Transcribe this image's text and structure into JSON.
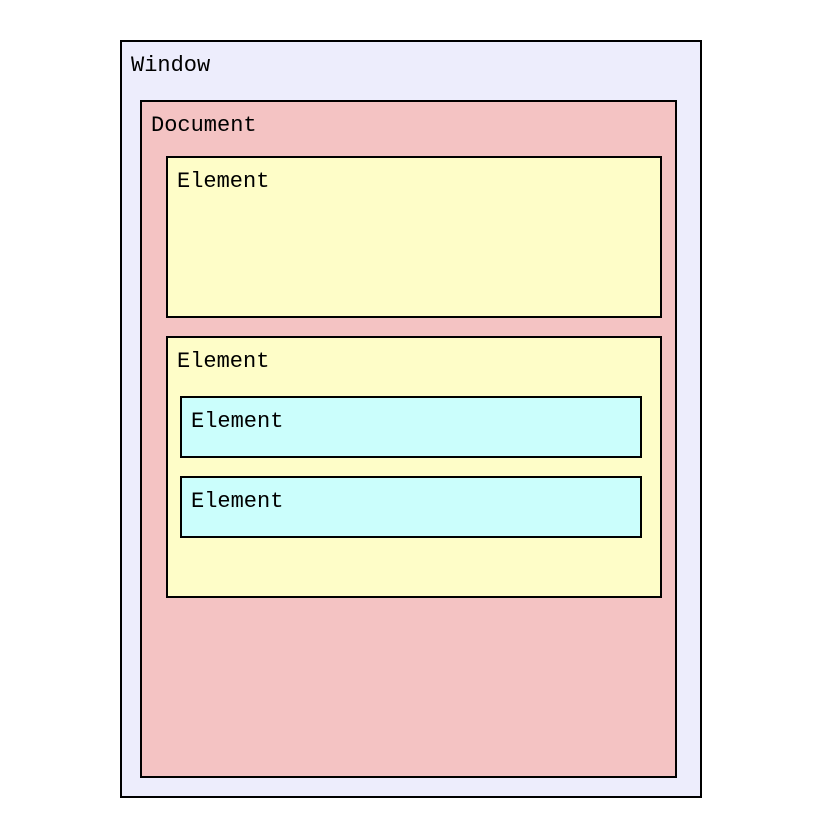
{
  "window": {
    "label": "Window",
    "color": "#ededfc",
    "document": {
      "label": "Document",
      "color": "#f4c3c3",
      "elements": [
        {
          "label": "Element",
          "color": "#fefdc8",
          "children": []
        },
        {
          "label": "Element",
          "color": "#fefdc8",
          "children": [
            {
              "label": "Element",
              "color": "#cbfefc"
            },
            {
              "label": "Element",
              "color": "#cbfefc"
            }
          ]
        }
      ]
    }
  }
}
